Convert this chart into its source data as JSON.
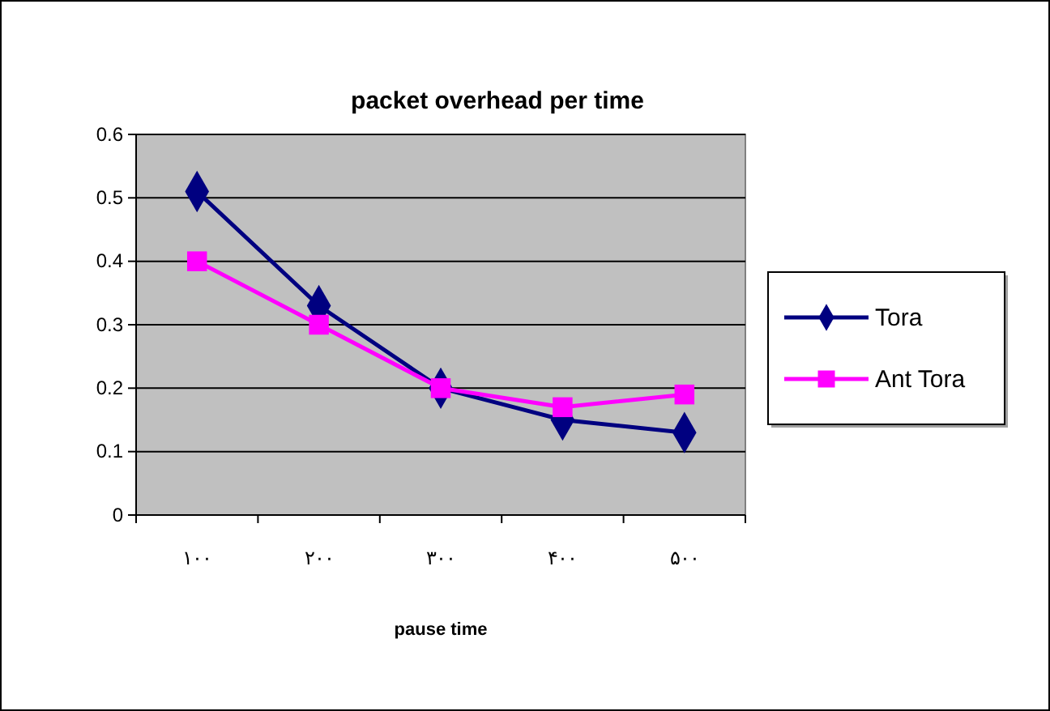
{
  "chart_data": {
    "type": "line",
    "title": "packet overhead per time",
    "xlabel": "pause time",
    "categories": [
      "۱۰۰",
      "۲۰۰",
      "۳۰۰",
      "۴۰۰",
      "۵۰۰"
    ],
    "series": [
      {
        "name": "Tora",
        "color": "#000080",
        "marker": "diamond",
        "values": [
          0.51,
          0.33,
          0.2,
          0.15,
          0.13
        ]
      },
      {
        "name": "Ant Tora",
        "color": "#ff00ff",
        "marker": "square",
        "values": [
          0.4,
          0.3,
          0.2,
          0.17,
          0.19
        ]
      }
    ],
    "ylim": [
      0,
      0.6
    ],
    "yticks": [
      0,
      0.1,
      0.2,
      0.3,
      0.4,
      0.5,
      0.6
    ],
    "grid": "y",
    "legend": "right",
    "line_style": "solid"
  }
}
